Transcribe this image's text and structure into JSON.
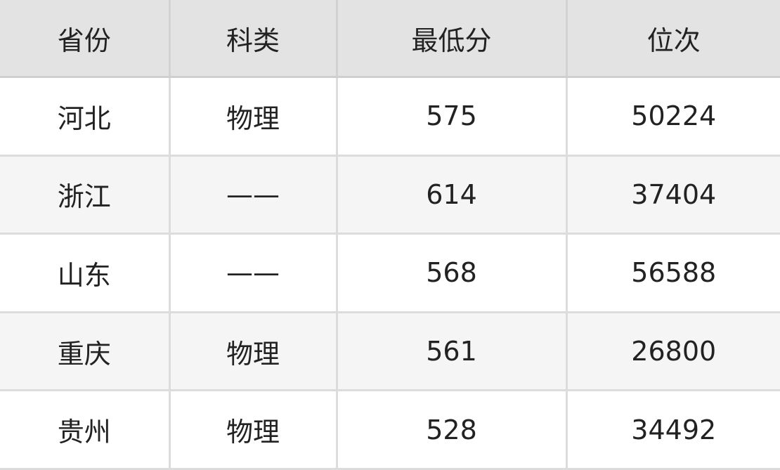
{
  "table": {
    "headers": [
      "省份",
      "科类",
      "最低分",
      "位次"
    ],
    "rows": [
      [
        "河北",
        "物理",
        "575",
        "50224"
      ],
      [
        "浙江",
        "——",
        "614",
        "37404"
      ],
      [
        "山东",
        "——",
        "568",
        "56588"
      ],
      [
        "重庆",
        "物理",
        "561",
        "26800"
      ],
      [
        "贵州",
        "物理",
        "528",
        "34492"
      ]
    ]
  }
}
